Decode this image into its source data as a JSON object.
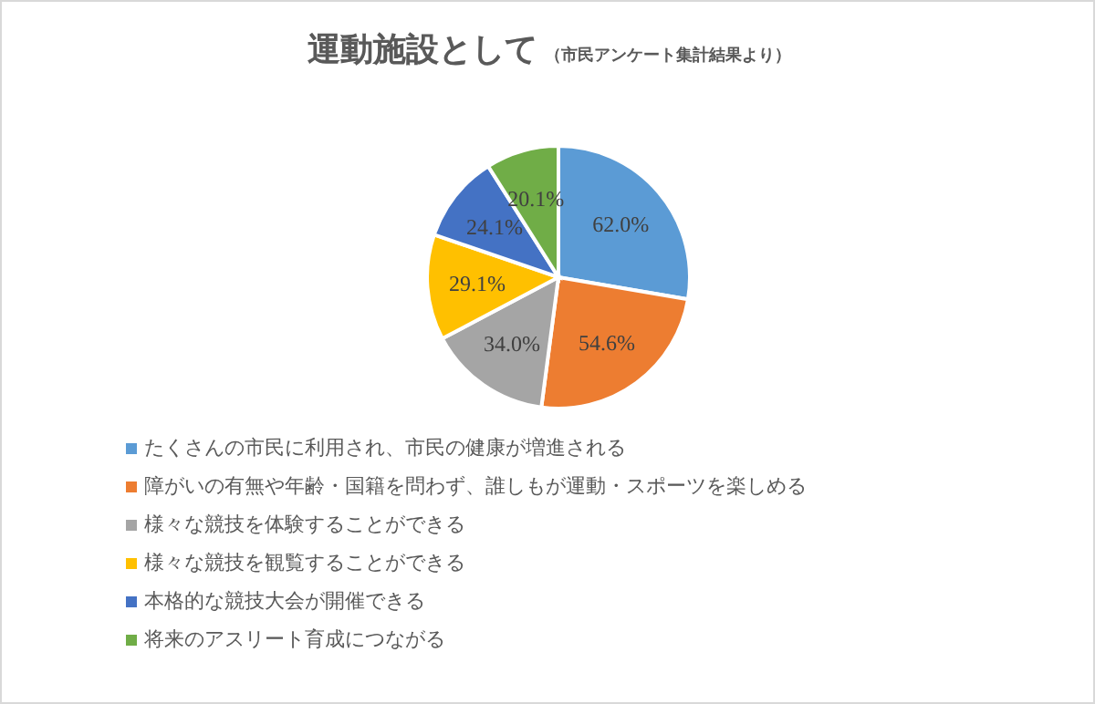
{
  "chart_data": {
    "type": "pie",
    "title": "運動施設として",
    "subtitle": "（市民アンケート集計結果より）",
    "categories": [
      "たくさんの市民に利用され、市民の健康が増進される",
      "障がいの有無や年齢・国籍を問わず、誰しもが運動・スポーツを楽しめる",
      "様々な競技を体験することができる",
      "様々な競技を観覧することができる",
      "本格的な競技大会が開催できる",
      "将来のアスリート育成につながる"
    ],
    "values": [
      62.0,
      54.6,
      34.0,
      29.1,
      24.1,
      20.1
    ],
    "value_labels": [
      "62.0%",
      "54.6%",
      "34.0%",
      "29.1%",
      "24.1%",
      "20.1%"
    ],
    "colors": [
      "#5b9bd5",
      "#ed7d31",
      "#a5a5a5",
      "#ffc000",
      "#4472c4",
      "#70ad47"
    ],
    "legend": "bottom"
  }
}
